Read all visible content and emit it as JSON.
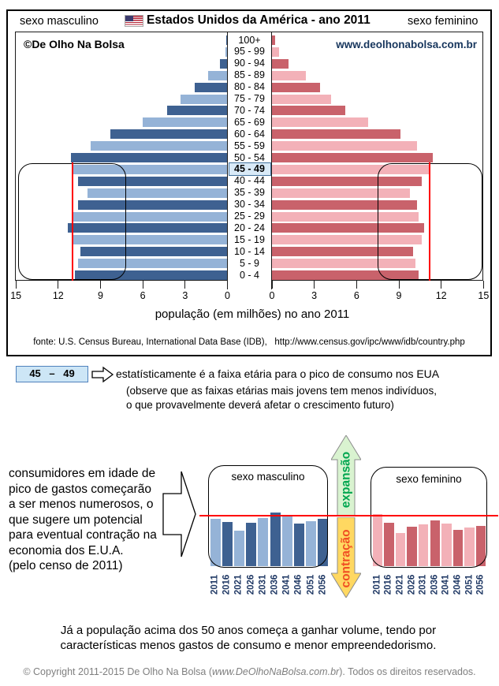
{
  "header": {
    "left_label": "sexo masculino",
    "flag_icon": "us-flag",
    "title": "Estados Unidos da América - ano 2011",
    "right_label": "sexo feminino"
  },
  "watermarks": {
    "brand": "©De Olho Na Bolsa",
    "website": "www.deolhonabolsa.com.br"
  },
  "chart_data": [
    {
      "type": "bar",
      "name": "population-pyramid-usa-2011",
      "orientation": "horizontal-mirrored",
      "title": "Estados Unidos da América - ano 2011",
      "xlabel": "população (em milhões) no ano 2011",
      "unit": "milhões de pessoas",
      "xlim": [
        0,
        15
      ],
      "x_ticks_left": [
        15,
        12,
        9,
        6,
        3,
        0
      ],
      "x_ticks_right": [
        0,
        3,
        6,
        9,
        12,
        15
      ],
      "age_groups": [
        "100+",
        "95 - 99",
        "90 - 94",
        "85 - 89",
        "80 - 84",
        "75 - 79",
        "70 - 74",
        "65 - 69",
        "60 - 64",
        "55 - 59",
        "50 - 54",
        "45 - 49",
        "40 - 44",
        "35 - 39",
        "30 - 34",
        "25 - 29",
        "20 - 24",
        "15 - 19",
        "10 - 14",
        "5 - 9",
        "0 - 4"
      ],
      "series": [
        {
          "name": "sexo masculino",
          "side": "left",
          "values": [
            0.1,
            0.15,
            0.55,
            1.35,
            2.3,
            3.3,
            4.3,
            6.0,
            8.3,
            9.7,
            11.1,
            11.0,
            10.6,
            9.9,
            10.6,
            10.9,
            11.3,
            10.9,
            10.4,
            10.6,
            10.8
          ]
        },
        {
          "name": "sexo feminino",
          "side": "right",
          "values": [
            0.2,
            0.5,
            1.2,
            2.4,
            3.4,
            4.2,
            5.2,
            6.8,
            9.1,
            10.3,
            11.4,
            11.2,
            10.6,
            9.8,
            10.3,
            10.4,
            10.8,
            10.6,
            10.0,
            10.2,
            10.4
          ]
        }
      ],
      "highlighted_group": "45 - 49",
      "reference_line_male": 11.0,
      "reference_line_female": 11.2
    },
    {
      "type": "bar",
      "name": "projection-male",
      "title": "sexo masculino",
      "categories": [
        "2011",
        "2016",
        "2021",
        "2026",
        "2031",
        "2036",
        "2041",
        "2046",
        "2051",
        "2056"
      ],
      "values": [
        0.94,
        0.88,
        0.71,
        0.86,
        0.96,
        1.06,
        1.0,
        0.84,
        0.89,
        0.94
      ],
      "baseline": 1.0
    },
    {
      "type": "bar",
      "name": "projection-female",
      "title": "sexo feminino",
      "categories": [
        "2011",
        "2016",
        "2021",
        "2026",
        "2031",
        "2036",
        "2041",
        "2046",
        "2051",
        "2056"
      ],
      "values": [
        1.03,
        0.86,
        0.65,
        0.78,
        0.83,
        0.91,
        0.84,
        0.72,
        0.77,
        0.8
      ],
      "baseline": 1.0
    }
  ],
  "axis": {
    "title": "população (em milhões) no ano 2011",
    "source": "fonte: U.S. Census Bureau, International Data Base (IDB),   http://www.census.gov/ipc/www/idb/country.php"
  },
  "annotation": {
    "badge": "45 – 49",
    "line1": "estatísticamente é a faixa etária para o pico de consumo nos EUA",
    "extra": [
      "(observe que as faixas etárias mais jovens tem menos indivíduos,",
      "o que provavelmente deverá afetar o crescimento futuro)"
    ]
  },
  "consumers_note": [
    "consumidores em idade de",
    "pico de gastos começarão",
    "a ser menos numerosos, o",
    "que sugere um potencial",
    "para eventual contração na",
    "economia dos E.U.A.",
    "(pelo censo de 2011)"
  ],
  "direction_labels": {
    "expansion": "expansão",
    "contraction": "contração"
  },
  "closing_note": [
    "Já a população acima dos 50 anos começa a ganhar volume, tendo por",
    "características menos gastos de consumo e menor empreendedorismo."
  ],
  "copyright": {
    "prefix": "© Copyright 2011-2015  De Olho Na Bolsa (",
    "url": "www.DeOlhoNaBolsa.com.br",
    "suffix": "). Todos os direitos reservados."
  },
  "colors": {
    "male_dark": "#3E6191",
    "male_light": "#95B3D7",
    "female_dark": "#C9626B",
    "female_light": "#F3B1B8",
    "reference_line": "#FF0000",
    "highlight_bg": "#D9EAF7",
    "highlight_border": "#41719C",
    "expansion_text": "#00A64F",
    "expansion_fill": "#D9F3D0",
    "contraction_text": "#F04E23",
    "contraction_fill": "#FFD861",
    "year_label": "#1F3864",
    "website_text": "#17365D"
  }
}
